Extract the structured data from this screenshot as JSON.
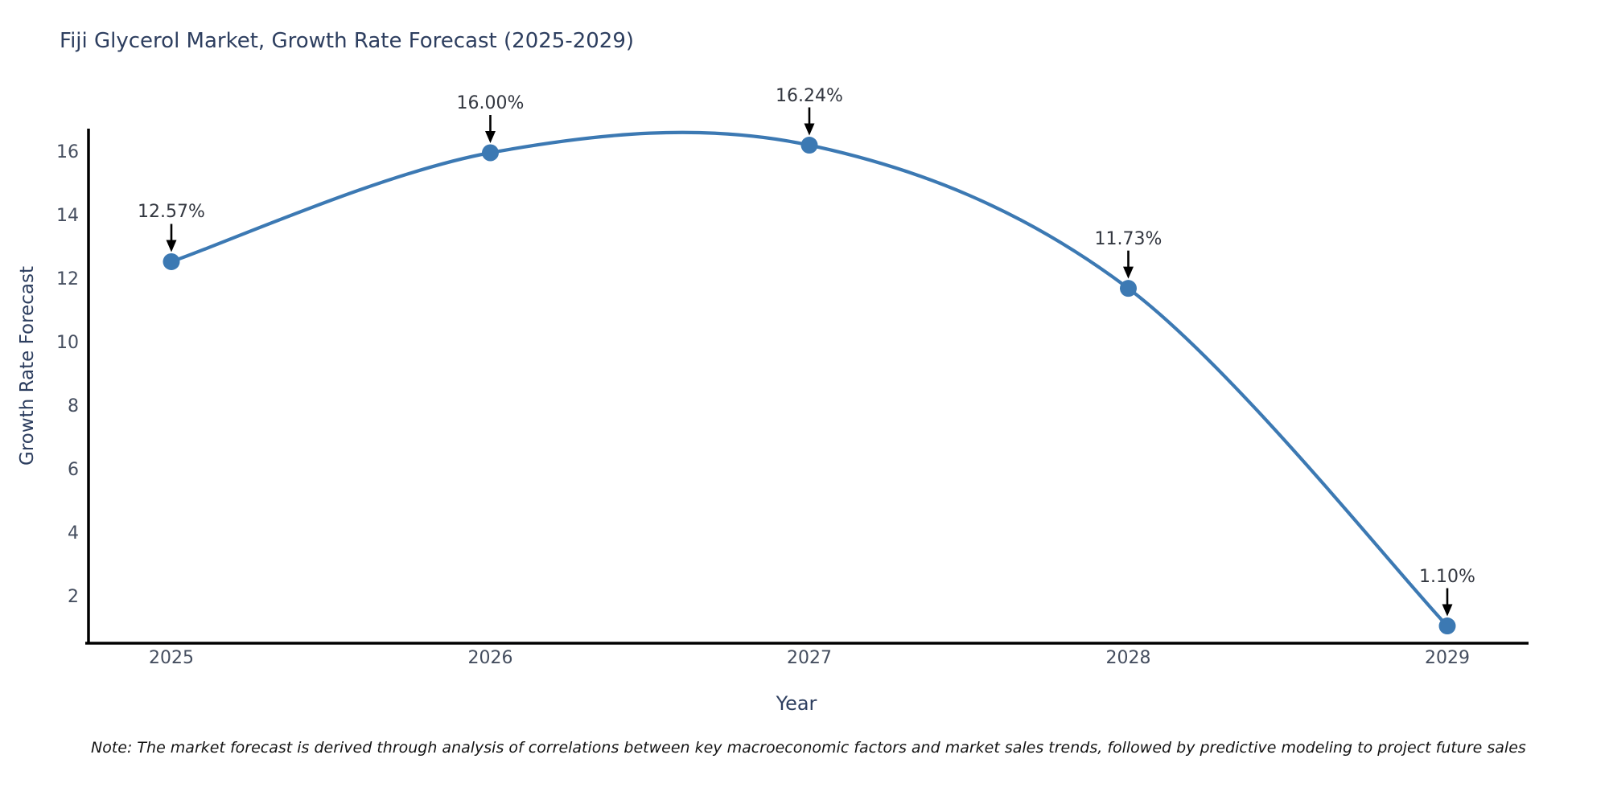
{
  "title": "Fiji Glycerol Market, Growth Rate Forecast (2025-2029)",
  "note": "Note: The market forecast is derived through analysis of correlations between key macroeconomic factors and market sales trends, followed by predictive modeling to project future sales",
  "chart_data": {
    "type": "line",
    "title": "Fiji Glycerol Market, Growth Rate Forecast (2025-2029)",
    "xlabel": "Year",
    "ylabel": "Growth Rate Forecast",
    "x": [
      2025,
      2026,
      2027,
      2028,
      2029
    ],
    "xticklabels": [
      "2025",
      "2026",
      "2027",
      "2028",
      "2029"
    ],
    "series": [
      {
        "name": "Growth Rate Forecast",
        "values": [
          12.57,
          16.0,
          16.24,
          11.73,
          1.1
        ]
      }
    ],
    "point_labels": [
      "12.57%",
      "16.00%",
      "16.24%",
      "11.73%",
      "1.10%"
    ],
    "yticks": [
      2,
      4,
      6,
      8,
      10,
      12,
      14,
      16
    ],
    "ylim": [
      0.56,
      16.76
    ],
    "grid": false,
    "legend_position": "none",
    "curve_style": "smooth-spline",
    "annotation_arrows": "black-down-arrows"
  },
  "colors": {
    "line": "#3c79b3",
    "marker": "#3c79b3",
    "axis": "#000000",
    "title_text": "#2d3e5f",
    "tick_text": "#454e5f",
    "annotation_text": "#333740",
    "arrow": "#000000",
    "background": "#ffffff"
  }
}
